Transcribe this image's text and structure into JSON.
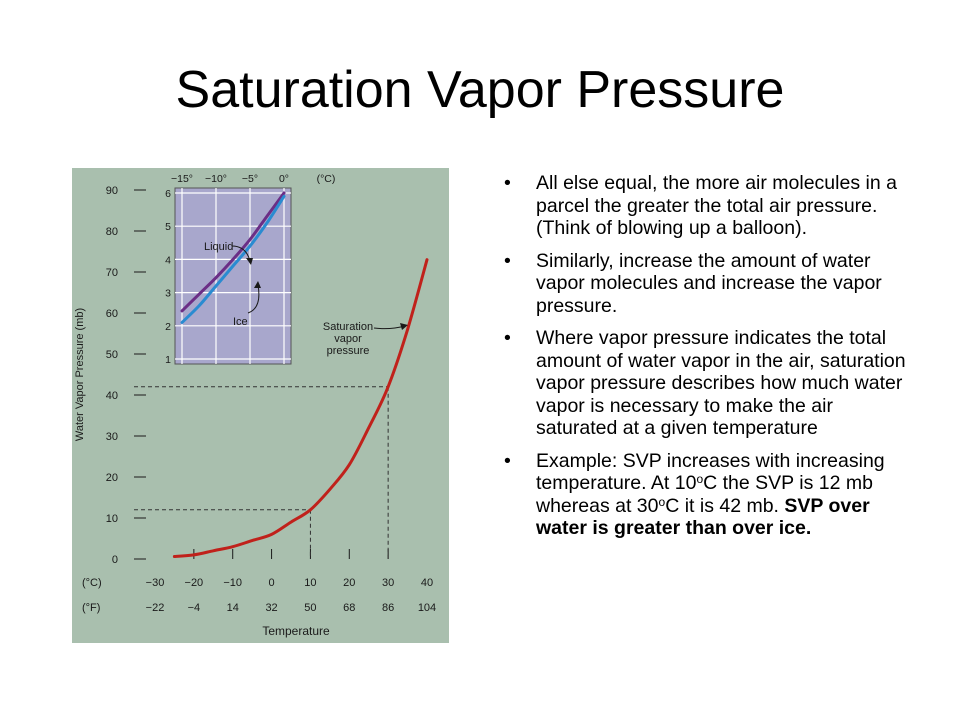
{
  "slide": {
    "title": "Saturation Vapor Pressure",
    "bullet_char": "•",
    "bullets": [
      {
        "text": "All else equal, the more air molecules in a parcel the greater the total air pressure. (Think of blowing up a balloon)."
      },
      {
        "text": "Similarly, increase the amount of water vapor molecules and increase the vapor pressure."
      },
      {
        "text": "Where vapor pressure indicates the total amount of water vapor in the air, saturation vapor pressure describes how much water vapor is necessary to make the air saturated at a given temperature"
      },
      {
        "part1": "Example:  SVP increases with increasing temperature.  At 10",
        "sup1": "o",
        "part2": "C the SVP is 12 mb whereas at 30",
        "sup2": "o",
        "part3": "C it is 42 mb.  ",
        "bold": "SVP over water is greater than over ice."
      }
    ]
  },
  "colors": {
    "panel_bg": "#a9bfae",
    "inset_bg": "#a8a7cc",
    "svp_curve": "#c0211b",
    "liquid_curve": "#6b2e86",
    "ice_curve": "#2a8bd1",
    "text": "#1a1a1a"
  },
  "chart_data": [
    {
      "type": "line",
      "xlabel": "Temperature",
      "ylabel": "Water Vapor Pressure (mb)",
      "xlim": [
        -30,
        40
      ],
      "ylim": [
        0,
        90
      ],
      "y_ticks": [
        0,
        10,
        20,
        30,
        40,
        50,
        60,
        70,
        80,
        90
      ],
      "x_ticks_c": [
        -30,
        -20,
        -10,
        0,
        10,
        20,
        30,
        40
      ],
      "x_tick_labels_c": [
        "−30",
        "−20",
        "−10",
        "0",
        "10",
        "20",
        "30",
        "40"
      ],
      "x_tick_labels_f": [
        "−22",
        "−4",
        "14",
        "32",
        "50",
        "68",
        "86",
        "104"
      ],
      "unit_c": "(°C)",
      "unit_f": "(°F)",
      "series": [
        {
          "label": "Saturation vapor pressure",
          "x": [
            -25,
            -20,
            -15,
            -10,
            -5,
            0,
            5,
            10,
            15,
            20,
            25,
            30,
            35,
            40
          ],
          "y": [
            0.6,
            1.0,
            2.0,
            3.0,
            4.5,
            6.0,
            9.0,
            12.0,
            17.0,
            23.0,
            32.0,
            42.0,
            56.0,
            73.0
          ]
        }
      ],
      "reference_points": [
        {
          "x": 10,
          "y": 12
        },
        {
          "x": 30,
          "y": 42
        }
      ],
      "grid": false
    },
    {
      "type": "line",
      "inset": true,
      "unit": "(°C)",
      "xlim": [
        -15,
        0
      ],
      "ylim": [
        1,
        6
      ],
      "x_ticks": [
        -15,
        -10,
        -5,
        0
      ],
      "x_tick_labels": [
        "−15°",
        "−10°",
        "−5°",
        "0°"
      ],
      "y_ticks": [
        1,
        2,
        3,
        4,
        5,
        6
      ],
      "grid": true,
      "series": [
        {
          "name": "Liquid",
          "x": [
            -15,
            -12.5,
            -10,
            -7.5,
            -5,
            -2.5,
            0
          ],
          "y": [
            2.45,
            2.95,
            3.45,
            4.0,
            4.6,
            5.3,
            6.0
          ]
        },
        {
          "name": "Ice",
          "x": [
            -15,
            -12.5,
            -10,
            -7.5,
            -5,
            -2.5,
            0
          ],
          "y": [
            2.1,
            2.6,
            3.2,
            3.8,
            4.4,
            5.1,
            5.9
          ]
        }
      ]
    }
  ]
}
